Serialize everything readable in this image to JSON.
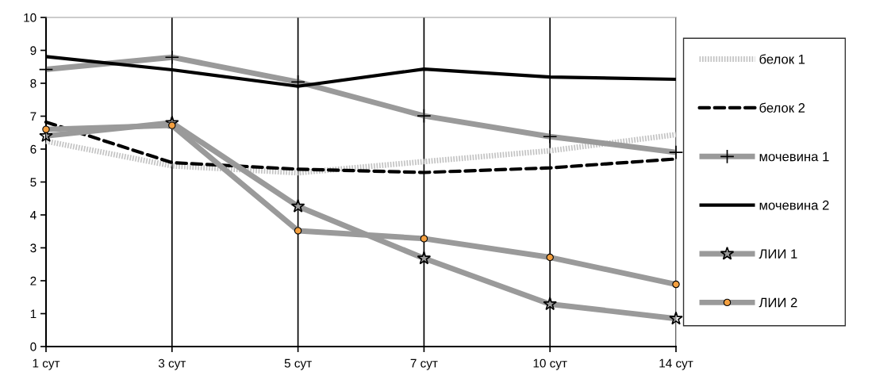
{
  "chart_data": {
    "type": "line",
    "categories": [
      "1 сут",
      "3 сут",
      "5 сут",
      "7 сут",
      "10 сут",
      "14 сут"
    ],
    "ylim": [
      0,
      10
    ],
    "yticks": [
      0,
      1,
      2,
      3,
      4,
      5,
      6,
      7,
      8,
      9,
      10
    ],
    "grid": "x",
    "legend": "right",
    "series": [
      {
        "name": "белок 1",
        "color": "#c4c4c4",
        "line_style": "dotted",
        "marker": "none",
        "values": [
          6.24,
          5.49,
          5.28,
          5.62,
          5.95,
          6.44
        ]
      },
      {
        "name": "белок 2",
        "color": "#000000",
        "line_style": "dashed",
        "marker": "none",
        "values": [
          6.82,
          5.59,
          5.39,
          5.29,
          5.43,
          5.7
        ]
      },
      {
        "name": "мочевина 1",
        "color": "#9a9a9a",
        "line_style": "solid",
        "marker": "cross",
        "values": [
          8.42,
          8.79,
          8.04,
          7.01,
          6.38,
          5.9
        ]
      },
      {
        "name": "мочевина 2",
        "color": "#000000",
        "line_style": "solid",
        "marker": "none",
        "values": [
          8.81,
          8.41,
          7.91,
          8.43,
          8.19,
          8.12
        ]
      },
      {
        "name": "ЛИИ 1",
        "color": "#9a9a9a",
        "line_style": "solid",
        "marker": "star",
        "values": [
          6.4,
          6.8,
          4.26,
          2.68,
          1.29,
          0.85
        ]
      },
      {
        "name": "ЛИИ 2",
        "color": "#9a9a9a",
        "line_style": "solid",
        "marker": "circle",
        "values": [
          6.6,
          6.72,
          3.52,
          3.28,
          2.71,
          1.89
        ]
      }
    ]
  }
}
